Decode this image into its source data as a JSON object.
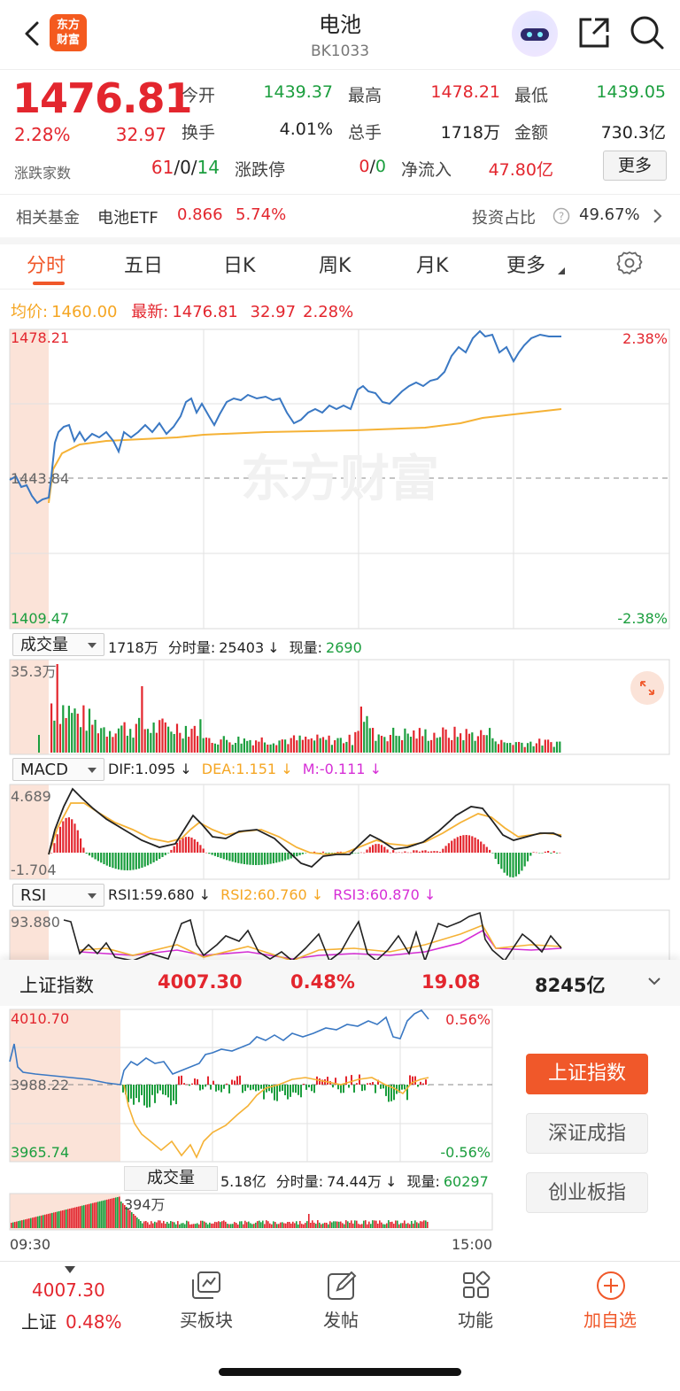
{
  "header": {
    "title": "电池",
    "code": "BK1033",
    "logo_text": "东方财富",
    "logo_line1": "东方",
    "logo_line2": "财富"
  },
  "quote": {
    "price": "1476.81",
    "change_pct": "2.28%",
    "change": "32.97",
    "open_label": "今开",
    "open": "1439.37",
    "high_label": "最高",
    "high": "1478.21",
    "low_label": "最低",
    "low": "1439.05",
    "turnover_label": "换手",
    "turnover": "4.01%",
    "volume_label": "总手",
    "volume": "1718万",
    "amount_label": "金额",
    "amount": "730.3亿",
    "updown_label": "涨跌家数",
    "up": "61",
    "flat": "0",
    "down": "14",
    "sep": "/",
    "limit_label": "涨跌停",
    "limit_up": "0",
    "limit_down": "0",
    "netflow_label": "净流入",
    "netflow": "47.80亿",
    "more_label": "更多"
  },
  "fund": {
    "label": "相关基金",
    "name": "电池ETF",
    "price": "0.866",
    "pct": "5.74%",
    "ratio_label": "投资占比",
    "ratio": "49.67%"
  },
  "tabs": [
    "分时",
    "五日",
    "日K",
    "周K",
    "月K",
    "更多"
  ],
  "intraday": {
    "avg_label": "均价:",
    "avg": "1460.00",
    "latest_label": "最新:",
    "latest": "1476.81",
    "latest_chg": "32.97",
    "latest_pct": "2.28%",
    "y_top": "1478.21",
    "y_mid": "1443.84",
    "y_bot": "1409.47",
    "pct_top": "2.38%",
    "pct_bot": "-2.38%",
    "watermark": "东方财富"
  },
  "volume": {
    "selector": "成交量",
    "total": "1718万",
    "fenshi_label": "分时量:",
    "fenshi": "25403",
    "now_label": "现量:",
    "now": "2690",
    "arrow": "↓",
    "ymax": "35.3万"
  },
  "macd": {
    "selector": "MACD",
    "dif": "DIF:1.095",
    "dea": "DEA:1.151",
    "m": "M:-0.111",
    "arrow": "↓",
    "ytop": "4.689",
    "ybot": "-1.704"
  },
  "rsi": {
    "selector": "RSI",
    "rsi1": "RSI1:59.680",
    "rsi2": "RSI2:60.760",
    "rsi3": "RSI3:60.870",
    "arrow": "↓",
    "ytop": "93.880"
  },
  "index": {
    "name": "上证指数",
    "price": "4007.30",
    "pct": "0.48%",
    "chg": "19.08",
    "amount": "8245亿",
    "y_top": "4010.70",
    "y_mid": "3988.22",
    "y_bot": "3965.74",
    "pct_top": "0.56%",
    "pct_bot": "-0.56%",
    "vol_selector": "成交量",
    "vol_total": "5.18亿",
    "vol_fenshi_label": "分时量:",
    "vol_fenshi": "74.44万",
    "vol_now_label": "现量:",
    "vol_now": "60297",
    "arrow": "↓",
    "vol_ymax": "394万",
    "t_start": "09:30",
    "t_end": "15:00",
    "buttons": [
      "上证指数",
      "深证成指",
      "创业板指"
    ]
  },
  "bottomnav": {
    "sh_price": "4007.30",
    "sh_label": "上证",
    "sh_pct": "0.48%",
    "items": [
      "买板块",
      "发帖",
      "功能",
      "加自选"
    ]
  },
  "colors": {
    "up": "#e3262e",
    "down": "#1b9e3e",
    "accent": "#f0582a",
    "avg": "#f5a623",
    "line": "#3a78c3"
  }
}
